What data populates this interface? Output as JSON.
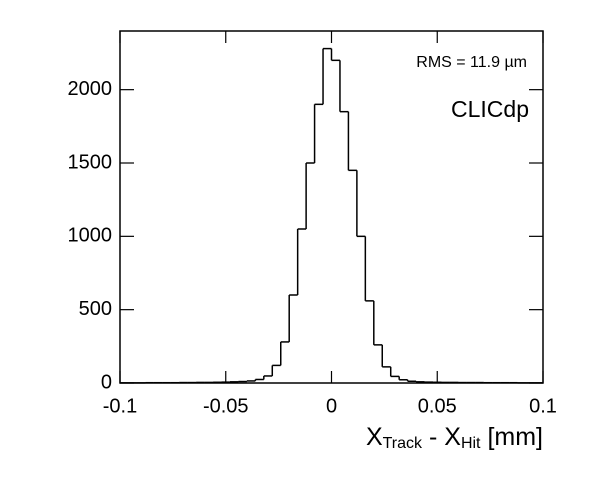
{
  "chart_data": {
    "type": "histogram",
    "bins": [
      -0.1,
      -0.096,
      -0.092,
      -0.088,
      -0.084,
      -0.08,
      -0.076,
      -0.072,
      -0.068,
      -0.064,
      -0.06,
      -0.056,
      -0.052,
      -0.048,
      -0.044,
      -0.04,
      -0.036,
      -0.032,
      -0.028,
      -0.024,
      -0.02,
      -0.016,
      -0.012,
      -0.008,
      -0.004,
      0,
      0.004,
      0.008,
      0.012,
      0.016,
      0.02,
      0.024,
      0.028,
      0.032,
      0.036,
      0.04,
      0.044,
      0.048,
      0.052,
      0.056,
      0.06,
      0.064,
      0.068,
      0.072,
      0.076,
      0.08,
      0.084,
      0.088,
      0.092,
      0.096,
      0.1
    ],
    "values": [
      1,
      1,
      1,
      2,
      2,
      2,
      2,
      3,
      3,
      4,
      4,
      5,
      6,
      8,
      10,
      14,
      24,
      48,
      120,
      280,
      600,
      1050,
      1500,
      1900,
      2280,
      2200,
      1850,
      1450,
      1000,
      560,
      260,
      110,
      45,
      22,
      12,
      8,
      6,
      5,
      4,
      4,
      3,
      3,
      3,
      2,
      2,
      2,
      2,
      1,
      1,
      1
    ],
    "color": "#000000",
    "xlim": [
      -0.1,
      0.1
    ],
    "xticks": [
      -0.1,
      -0.05,
      0,
      0.05,
      0.1
    ],
    "ylim": [
      0,
      2400
    ],
    "yticks": [
      0,
      500,
      1000,
      1500,
      2000
    ],
    "x_label_parts": [
      "X",
      "Track",
      " - X",
      "Hit",
      " [mm]"
    ],
    "annotations": [
      "RMS = 11.9 µm",
      "CLICdp"
    ]
  }
}
